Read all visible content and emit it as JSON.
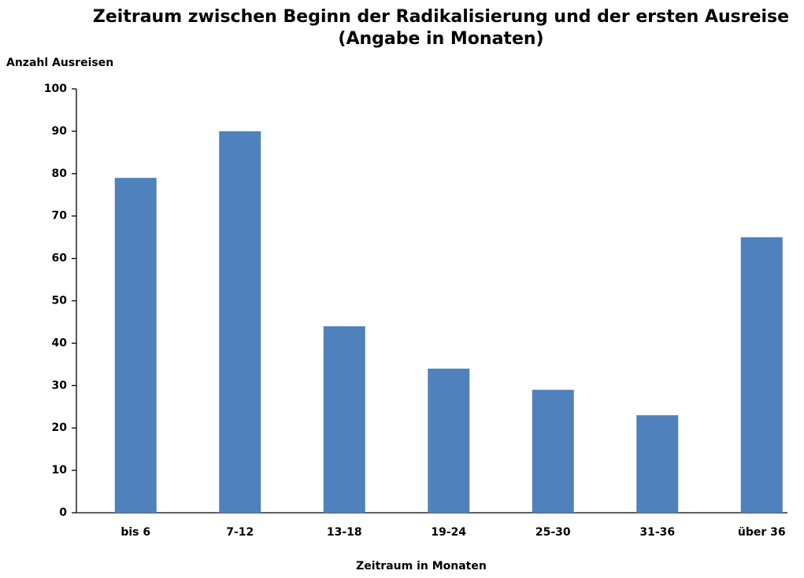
{
  "chart_data": {
    "type": "bar",
    "title": [
      "Zeitraum zwischen Beginn der Radikalisierung und der ersten Ausreise",
      "(Angabe in Monaten)"
    ],
    "y_label": "Anzahl Ausreisen",
    "x_label": "Zeitraum in Monaten",
    "categories": [
      "bis 6",
      "7-12",
      "13-18",
      "19-24",
      "25-30",
      "31-36",
      "über 36"
    ],
    "values": [
      79,
      90,
      44,
      34,
      29,
      23,
      65
    ],
    "color": "#4f81bd",
    "ylim": [
      0,
      100
    ],
    "yticks": [
      0,
      10,
      20,
      30,
      40,
      50,
      60,
      70,
      80,
      90,
      100
    ],
    "grid": false
  }
}
